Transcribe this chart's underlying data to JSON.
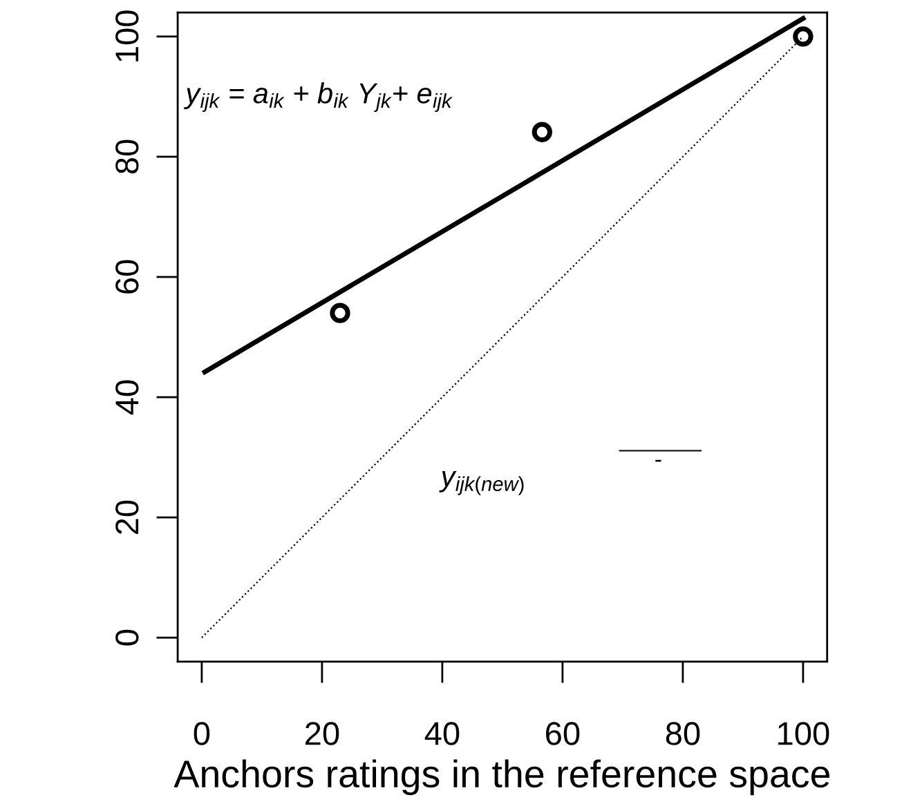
{
  "chart_data": {
    "type": "scatter",
    "xlabel": "Anchors ratings in the reference space",
    "xlim": [
      -4,
      104
    ],
    "ylim": [
      -4,
      104
    ],
    "xticks": [
      0,
      20,
      40,
      60,
      80,
      100
    ],
    "yticks": [
      0,
      20,
      40,
      60,
      80,
      100
    ],
    "annotations": [
      "y$_{ijk}$ = a$_{ik}$ + b$_{ik}$ Y$_{jk}$+ e$_{ijk}$",
      "y$_{ijk(new)}$",
      "-"
    ],
    "series": [
      {
        "type": "scatter",
        "x": [
          23,
          56.6,
          100
        ],
        "values": [
          54,
          84.1,
          100
        ],
        "color": "#000000",
        "marker": "circle"
      },
      {
        "type": "line",
        "x": [
          0.5,
          100
        ],
        "values": [
          44.2,
          103
        ],
        "color": "#000000",
        "line_style": "solid",
        "marker": "none"
      },
      {
        "type": "line",
        "x": [
          0,
          100
        ],
        "values": [
          0,
          100
        ],
        "color": "#000000",
        "line_style": "dotted",
        "marker": "none"
      },
      {
        "type": "line",
        "x": [
          69.5,
          83
        ],
        "values": [
          31.1,
          31.1
        ],
        "color": "#000000",
        "line_style": "solid",
        "marker": "none"
      }
    ]
  }
}
